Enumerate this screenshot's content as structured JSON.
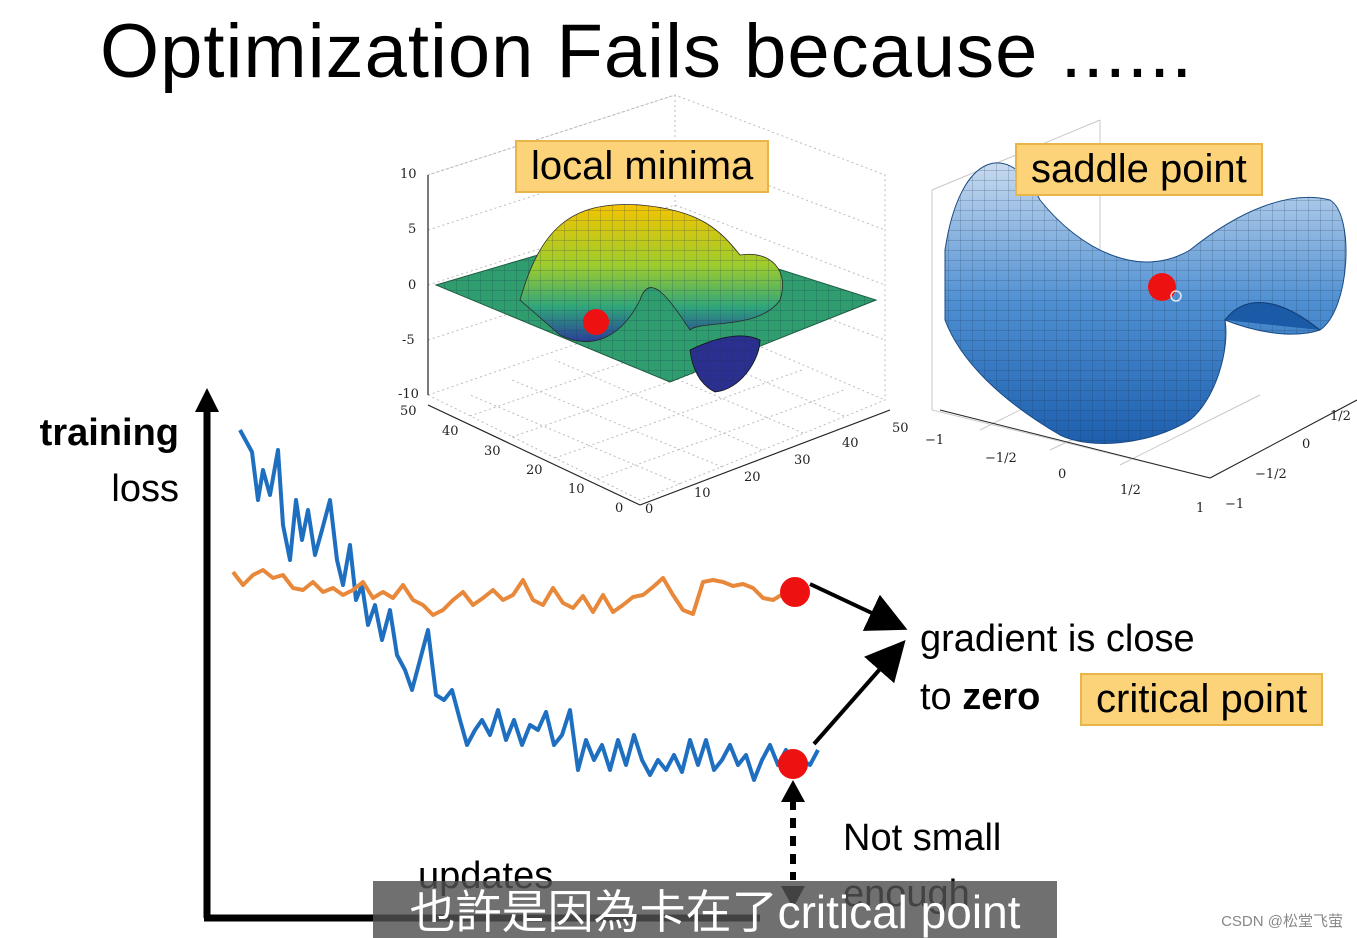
{
  "slide": {
    "title": "Optimization Fails because ......",
    "local_minima_label": "local minima",
    "saddle_point_label": "saddle point",
    "critical_point_label": "critical point",
    "y_axis_label_bold": "training",
    "y_axis_label": "loss",
    "x_axis_label": "updates",
    "gradient_text_1": "gradient is close",
    "gradient_text_2_prefix": "to ",
    "gradient_text_2_bold": "zero",
    "not_small_1": "Not small",
    "not_small_2": "enough",
    "subtitle": "也許是因為卡在了critical point",
    "watermark": "CSDN @松堂飞萤",
    "colors": {
      "blue_curve": "#1f6fc1",
      "orange_curve": "#e8883a",
      "dot": "#ee1111",
      "tag_bg": "#fdd37a"
    }
  },
  "local_minima_plot": {
    "z_ticks": [
      "10",
      "5",
      "0",
      "-5",
      "-10"
    ],
    "y_ticks": [
      "50",
      "40",
      "30",
      "20",
      "10",
      "0"
    ],
    "x_ticks": [
      "0",
      "10",
      "20",
      "30",
      "40",
      "50"
    ]
  },
  "saddle_plot": {
    "x_ticks": [
      "−1",
      "−1/2",
      "0",
      "1/2",
      "1"
    ],
    "y_ticks": [
      "−1",
      "−1/2",
      "0",
      "1/2"
    ]
  }
}
